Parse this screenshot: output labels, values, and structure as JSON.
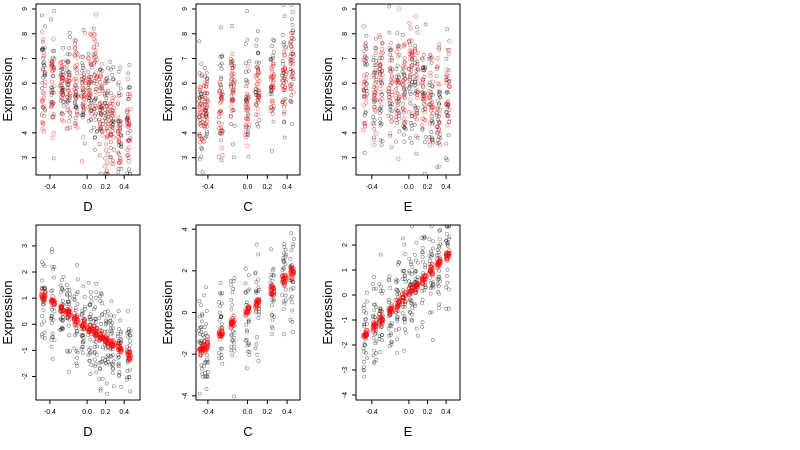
{
  "chart_data": [
    {
      "type": "scatter",
      "xlabel": "D",
      "ylabel": "Expression",
      "xlim": [
        -0.55,
        0.57
      ],
      "ylim": [
        2.3,
        9.2
      ],
      "xticks": [
        -0.4,
        0.0,
        0.2,
        0.4
      ],
      "xtick_labels": [
        "-0.4",
        "0.0",
        "0.2",
        "0.4"
      ],
      "yticks": [
        3,
        4,
        5,
        6,
        7,
        8,
        9
      ],
      "ytick_labels": [
        "3",
        "4",
        "5",
        "6",
        "7",
        "8",
        "9"
      ],
      "x_groups": [
        -0.47,
        -0.37,
        -0.27,
        -0.2,
        -0.12,
        -0.04,
        0.03,
        0.09,
        0.15,
        0.21,
        0.27,
        0.35,
        0.45
      ],
      "observed_trend": [
        6.2,
        6.1,
        6.0,
        5.9,
        5.8,
        5.8,
        5.9,
        5.6,
        5.1,
        4.7,
        4.5,
        4.3,
        4.1
      ],
      "observed_spread": 1.1,
      "fitted_trend": [
        6.0,
        6.0,
        5.9,
        5.7,
        5.8,
        5.7,
        6.0,
        6.7,
        5.0,
        4.6,
        4.4,
        4.4,
        4.2
      ],
      "fitted_spread": 0.9,
      "fitted_points_per_group": 22,
      "grid": false,
      "legend": "none",
      "colors": {
        "observed": "#000000",
        "fitted": "#ff0000"
      }
    },
    {
      "type": "scatter",
      "xlabel": "C",
      "ylabel": "Expression",
      "xlim": [
        -0.52,
        0.53
      ],
      "ylim": [
        2.3,
        9.2
      ],
      "xticks": [
        -0.4,
        0.0,
        0.2,
        0.4
      ],
      "xtick_labels": [
        "-0.4",
        "0.0",
        "0.2",
        "0.4"
      ],
      "yticks": [
        3,
        4,
        5,
        6,
        7,
        8,
        9
      ],
      "ytick_labels": [
        "3",
        "4",
        "5",
        "6",
        "7",
        "8",
        "9"
      ],
      "x_groups": [
        -0.47,
        -0.42,
        -0.27,
        -0.15,
        0.0,
        0.1,
        0.25,
        0.37,
        0.45
      ],
      "observed_trend": [
        4.9,
        5.0,
        5.2,
        5.4,
        5.6,
        5.9,
        6.1,
        6.5,
        6.8
      ],
      "observed_spread": 1.1,
      "fitted_trend": [
        4.8,
        4.9,
        4.9,
        5.6,
        4.8,
        5.9,
        5.7,
        6.5,
        7.1
      ],
      "fitted_spread": 0.8,
      "fitted_points_per_group": 24,
      "grid": false,
      "legend": "none",
      "colors": {
        "observed": "#000000",
        "fitted": "#ff0000"
      }
    },
    {
      "type": "scatter",
      "xlabel": "E",
      "ylabel": "Expression",
      "xlim": [
        -0.57,
        0.55
      ],
      "ylim": [
        2.3,
        9.2
      ],
      "xticks": [
        -0.4,
        0.0,
        0.2,
        0.4
      ],
      "xtick_labels": [
        "-0.4",
        "0.0",
        "0.2",
        "0.4"
      ],
      "yticks": [
        3,
        4,
        5,
        6,
        7,
        8,
        9
      ],
      "ytick_labels": [
        "3",
        "4",
        "5",
        "6",
        "7",
        "8",
        "9"
      ],
      "x_groups": [
        -0.47,
        -0.37,
        -0.3,
        -0.2,
        -0.12,
        -0.05,
        0.02,
        0.08,
        0.16,
        0.24,
        0.32,
        0.42
      ],
      "observed_trend": [
        5.9,
        5.8,
        5.9,
        5.9,
        5.8,
        5.7,
        6.0,
        5.8,
        5.5,
        5.3,
        5.1,
        5.0
      ],
      "observed_spread": 1.2,
      "fitted_trend": [
        5.8,
        5.3,
        6.3,
        6.0,
        5.6,
        5.7,
        6.9,
        6.2,
        5.4,
        5.4,
        5.2,
        5.3
      ],
      "fitted_spread": 1.0,
      "fitted_points_per_group": 20,
      "grid": false,
      "legend": "none",
      "colors": {
        "observed": "#000000",
        "fitted": "#ff0000"
      }
    },
    {
      "type": "scatter",
      "xlabel": "D",
      "ylabel": "Expression",
      "xlim": [
        -0.55,
        0.57
      ],
      "ylim": [
        -2.9,
        3.8
      ],
      "xticks": [
        -0.4,
        0.0,
        0.2,
        0.4
      ],
      "xtick_labels": [
        "-0.4",
        "0.0",
        "0.2",
        "0.4"
      ],
      "yticks": [
        -2,
        -1,
        0,
        1,
        2,
        3
      ],
      "ytick_labels": [
        "-2",
        "-1",
        "0",
        "1",
        "2",
        "3"
      ],
      "x_groups": [
        -0.47,
        -0.37,
        -0.27,
        -0.2,
        -0.12,
        -0.04,
        0.03,
        0.09,
        0.15,
        0.21,
        0.27,
        0.35,
        0.45
      ],
      "observed_trend": [
        1.1,
        0.8,
        0.6,
        0.4,
        0.2,
        0.0,
        -0.2,
        -0.3,
        -0.5,
        -0.6,
        -0.7,
        -0.9,
        -1.1
      ],
      "observed_spread": 0.9,
      "fitted_line": [
        1.1,
        -1.2
      ],
      "fitted_spread": 0.1,
      "fitted_points_per_group": 18,
      "grid": false,
      "legend": "none",
      "colors": {
        "observed": "#000000",
        "fitted": "#ff0000"
      }
    },
    {
      "type": "scatter",
      "xlabel": "C",
      "ylabel": "Expression",
      "xlim": [
        -0.52,
        0.53
      ],
      "ylim": [
        -4.2,
        4.2
      ],
      "xticks": [
        -0.4,
        0.0,
        0.2,
        0.4
      ],
      "xtick_labels": [
        "-0.4",
        "0.0",
        "0.2",
        "0.4"
      ],
      "yticks": [
        -4,
        -2,
        0,
        2,
        4
      ],
      "ytick_labels": [
        "-4",
        "-2",
        "0",
        "2",
        "4"
      ],
      "x_groups": [
        -0.47,
        -0.42,
        -0.27,
        -0.15,
        0.0,
        0.1,
        0.25,
        0.37,
        0.45
      ],
      "observed_trend": [
        -1.6,
        -1.4,
        -1.0,
        -0.4,
        0.0,
        0.4,
        1.0,
        1.5,
        1.9
      ],
      "observed_spread": 1.2,
      "fitted_line": [
        -1.8,
        1.9
      ],
      "fitted_spread": 0.12,
      "fitted_points_per_group": 20,
      "grid": false,
      "legend": "none",
      "colors": {
        "observed": "#000000",
        "fitted": "#ff0000"
      }
    },
    {
      "type": "scatter",
      "xlabel": "E",
      "ylabel": "Expression",
      "xlim": [
        -0.57,
        0.55
      ],
      "ylim": [
        -4.2,
        2.8
      ],
      "xticks": [
        -0.4,
        0.0,
        0.2,
        0.4
      ],
      "xtick_labels": [
        "-0.4",
        "0.0",
        "0.2",
        "0.4"
      ],
      "yticks": [
        -4,
        -3,
        -2,
        -1,
        0,
        1,
        2
      ],
      "ytick_labels": [
        "-4",
        "-3",
        "-2",
        "-1",
        "0",
        "1",
        "2"
      ],
      "x_groups": [
        -0.47,
        -0.37,
        -0.3,
        -0.2,
        -0.12,
        -0.05,
        0.02,
        0.08,
        0.16,
        0.24,
        0.32,
        0.42
      ],
      "observed_trend": [
        -1.5,
        -1.2,
        -0.9,
        -0.6,
        -0.3,
        0.0,
        0.3,
        0.5,
        0.8,
        1.0,
        1.2,
        1.4
      ],
      "observed_spread": 1.0,
      "fitted_line": [
        -1.6,
        1.6
      ],
      "fitted_spread": 0.1,
      "fitted_points_per_group": 18,
      "grid": false,
      "legend": "none",
      "colors": {
        "observed": "#000000",
        "fitted": "#ff0000"
      }
    }
  ]
}
